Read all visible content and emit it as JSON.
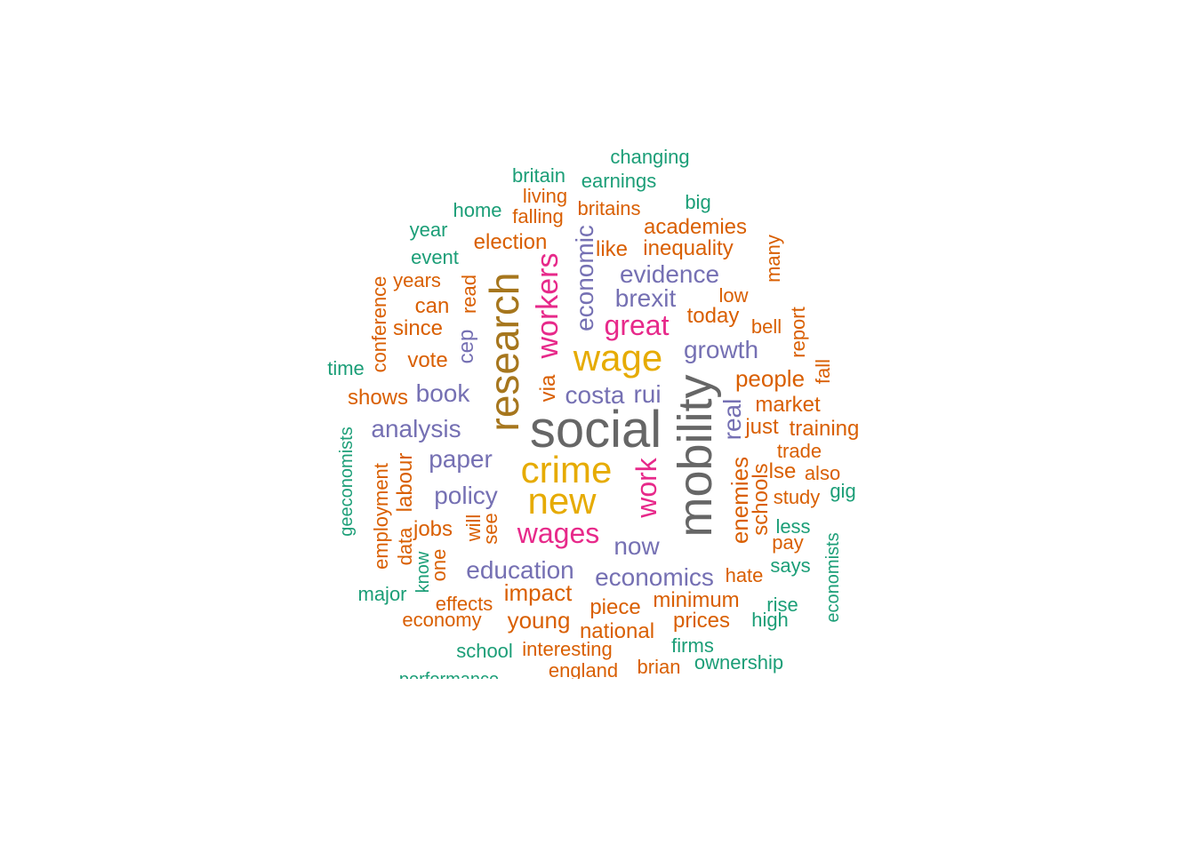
{
  "palette": {
    "slate": "#666666",
    "olive": "#A6761D",
    "gold": "#E6AB02",
    "magenta": "#E7298A",
    "purple": "#7570B3",
    "orange": "#D95F02",
    "teal": "#1B9E77"
  },
  "words": [
    {
      "text": "social",
      "color": "slate"
    },
    {
      "text": "mobility",
      "color": "slate"
    },
    {
      "text": "research",
      "color": "olive"
    },
    {
      "text": "crime",
      "color": "gold"
    },
    {
      "text": "wage",
      "color": "gold"
    },
    {
      "text": "new",
      "color": "gold"
    },
    {
      "text": "workers",
      "color": "magenta"
    },
    {
      "text": "great",
      "color": "magenta"
    },
    {
      "text": "wages",
      "color": "magenta"
    },
    {
      "text": "work",
      "color": "magenta"
    },
    {
      "text": "economic",
      "color": "purple"
    },
    {
      "text": "evidence",
      "color": "purple"
    },
    {
      "text": "brexit",
      "color": "purple"
    },
    {
      "text": "growth",
      "color": "purple"
    },
    {
      "text": "costa",
      "color": "purple"
    },
    {
      "text": "rui",
      "color": "purple"
    },
    {
      "text": "real",
      "color": "purple"
    },
    {
      "text": "book",
      "color": "purple"
    },
    {
      "text": "analysis",
      "color": "purple"
    },
    {
      "text": "paper",
      "color": "purple"
    },
    {
      "text": "policy",
      "color": "purple"
    },
    {
      "text": "cep",
      "color": "purple"
    },
    {
      "text": "now",
      "color": "purple"
    },
    {
      "text": "education",
      "color": "purple"
    },
    {
      "text": "economics",
      "color": "purple"
    },
    {
      "text": "changing",
      "color": "teal"
    },
    {
      "text": "britain",
      "color": "teal"
    },
    {
      "text": "earnings",
      "color": "teal"
    },
    {
      "text": "living",
      "color": "orange"
    },
    {
      "text": "big",
      "color": "teal"
    },
    {
      "text": "home",
      "color": "teal"
    },
    {
      "text": "falling",
      "color": "orange"
    },
    {
      "text": "britains",
      "color": "orange"
    },
    {
      "text": "academies",
      "color": "orange"
    },
    {
      "text": "year",
      "color": "teal"
    },
    {
      "text": "election",
      "color": "orange"
    },
    {
      "text": "like",
      "color": "orange"
    },
    {
      "text": "inequality",
      "color": "orange"
    },
    {
      "text": "many",
      "color": "orange"
    },
    {
      "text": "event",
      "color": "teal"
    },
    {
      "text": "years",
      "color": "orange"
    },
    {
      "text": "read",
      "color": "orange"
    },
    {
      "text": "low",
      "color": "orange"
    },
    {
      "text": "conference",
      "color": "orange"
    },
    {
      "text": "can",
      "color": "orange"
    },
    {
      "text": "today",
      "color": "orange"
    },
    {
      "text": "since",
      "color": "orange"
    },
    {
      "text": "bell",
      "color": "orange"
    },
    {
      "text": "report",
      "color": "orange"
    },
    {
      "text": "time",
      "color": "teal"
    },
    {
      "text": "vote",
      "color": "orange"
    },
    {
      "text": "via",
      "color": "orange"
    },
    {
      "text": "fall",
      "color": "orange"
    },
    {
      "text": "people",
      "color": "orange"
    },
    {
      "text": "shows",
      "color": "orange"
    },
    {
      "text": "market",
      "color": "orange"
    },
    {
      "text": "just",
      "color": "orange"
    },
    {
      "text": "training",
      "color": "orange"
    },
    {
      "text": "geeconomists",
      "color": "teal"
    },
    {
      "text": "trade",
      "color": "orange"
    },
    {
      "text": "labour",
      "color": "orange"
    },
    {
      "text": "enemies",
      "color": "orange"
    },
    {
      "text": "schools",
      "color": "orange"
    },
    {
      "text": "lse",
      "color": "orange"
    },
    {
      "text": "also",
      "color": "orange"
    },
    {
      "text": "study",
      "color": "orange"
    },
    {
      "text": "gig",
      "color": "teal"
    },
    {
      "text": "employment",
      "color": "orange"
    },
    {
      "text": "will",
      "color": "orange"
    },
    {
      "text": "see",
      "color": "orange"
    },
    {
      "text": "jobs",
      "color": "orange"
    },
    {
      "text": "data",
      "color": "orange"
    },
    {
      "text": "less",
      "color": "teal"
    },
    {
      "text": "pay",
      "color": "orange"
    },
    {
      "text": "one",
      "color": "orange"
    },
    {
      "text": "know",
      "color": "teal"
    },
    {
      "text": "economists",
      "color": "teal"
    },
    {
      "text": "says",
      "color": "teal"
    },
    {
      "text": "hate",
      "color": "orange"
    },
    {
      "text": "impact",
      "color": "orange"
    },
    {
      "text": "major",
      "color": "teal"
    },
    {
      "text": "minimum",
      "color": "orange"
    },
    {
      "text": "effects",
      "color": "orange"
    },
    {
      "text": "piece",
      "color": "orange"
    },
    {
      "text": "rise",
      "color": "teal"
    },
    {
      "text": "economy",
      "color": "orange"
    },
    {
      "text": "young",
      "color": "orange"
    },
    {
      "text": "prices",
      "color": "orange"
    },
    {
      "text": "high",
      "color": "teal"
    },
    {
      "text": "national",
      "color": "orange"
    },
    {
      "text": "school",
      "color": "teal"
    },
    {
      "text": "interesting",
      "color": "orange"
    },
    {
      "text": "firms",
      "color": "teal"
    },
    {
      "text": "ownership",
      "color": "teal"
    },
    {
      "text": "brian",
      "color": "orange"
    },
    {
      "text": "england",
      "color": "orange"
    },
    {
      "text": "performance",
      "color": "teal"
    }
  ]
}
